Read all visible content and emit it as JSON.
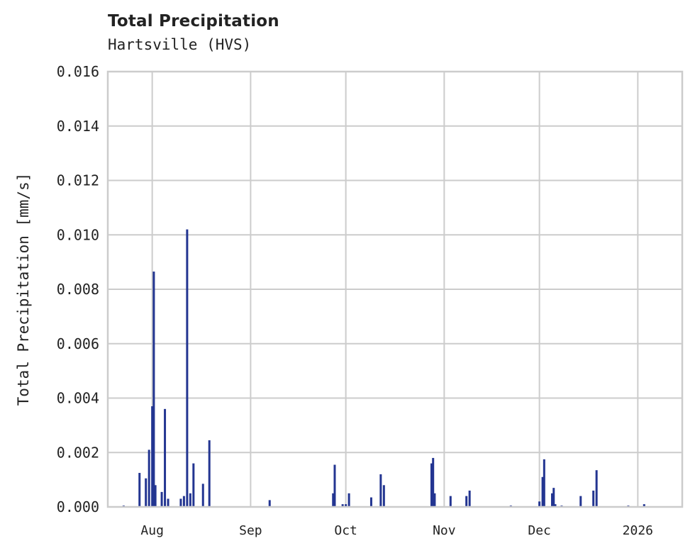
{
  "chart_data": {
    "type": "bar",
    "title": "Total Precipitation",
    "subtitle": "Hartsville (HVS)",
    "xlabel": "",
    "ylabel": "Total Precipitation [mm/s]",
    "ylim": [
      0,
      0.016
    ],
    "yticks": [
      "0.000",
      "0.002",
      "0.004",
      "0.006",
      "0.008",
      "0.010",
      "0.012",
      "0.014",
      "0.016"
    ],
    "xlim": [
      "2025-07-18",
      "2026-01-15"
    ],
    "xticks": [
      {
        "label": "Aug",
        "date": "2025-08-01"
      },
      {
        "label": "Sep",
        "date": "2025-09-01"
      },
      {
        "label": "Oct",
        "date": "2025-10-01"
      },
      {
        "label": "Nov",
        "date": "2025-11-01"
      },
      {
        "label": "Dec",
        "date": "2025-12-01"
      },
      {
        "label": "2026",
        "date": "2026-01-01"
      }
    ],
    "grid": true,
    "legend": null,
    "bar_color": "#233591",
    "grid_color": "#cccccc",
    "series": [
      {
        "name": "Total Precipitation",
        "x": [
          "2025-07-23",
          "2025-07-28",
          "2025-07-30",
          "2025-07-31",
          "2025-08-01",
          "2025-08-01T12",
          "2025-08-02",
          "2025-08-04",
          "2025-08-05",
          "2025-08-06",
          "2025-08-10",
          "2025-08-11",
          "2025-08-12",
          "2025-08-13",
          "2025-08-14",
          "2025-08-17",
          "2025-08-19",
          "2025-09-07",
          "2025-09-27",
          "2025-09-27T12",
          "2025-09-30",
          "2025-10-01",
          "2025-10-02",
          "2025-10-09",
          "2025-10-12",
          "2025-10-13",
          "2025-10-28",
          "2025-10-28T12",
          "2025-10-29",
          "2025-11-03",
          "2025-11-08",
          "2025-11-09",
          "2025-11-22",
          "2025-12-01",
          "2025-12-02",
          "2025-12-02T12",
          "2025-12-05",
          "2025-12-05T12",
          "2025-12-06",
          "2025-12-08",
          "2025-12-14",
          "2025-12-18",
          "2025-12-19",
          "2025-12-29",
          "2026-01-03"
        ],
        "values": [
          5e-05,
          0.00125,
          0.00105,
          0.0021,
          0.0037,
          0.00865,
          0.0008,
          0.00055,
          0.0036,
          0.0003,
          0.0003,
          0.0004,
          0.0102,
          0.0005,
          0.0016,
          0.00085,
          0.00245,
          0.00025,
          0.0005,
          0.00155,
          0.0001,
          0.0001,
          0.0005,
          0.00035,
          0.0012,
          0.0008,
          0.0016,
          0.0018,
          0.0005,
          0.0004,
          0.0004,
          0.0006,
          5e-05,
          0.0002,
          0.0011,
          0.00175,
          0.0005,
          0.0007,
          0.0001,
          5e-05,
          0.0004,
          0.0006,
          0.00135,
          5e-05,
          0.0001
        ]
      }
    ]
  }
}
